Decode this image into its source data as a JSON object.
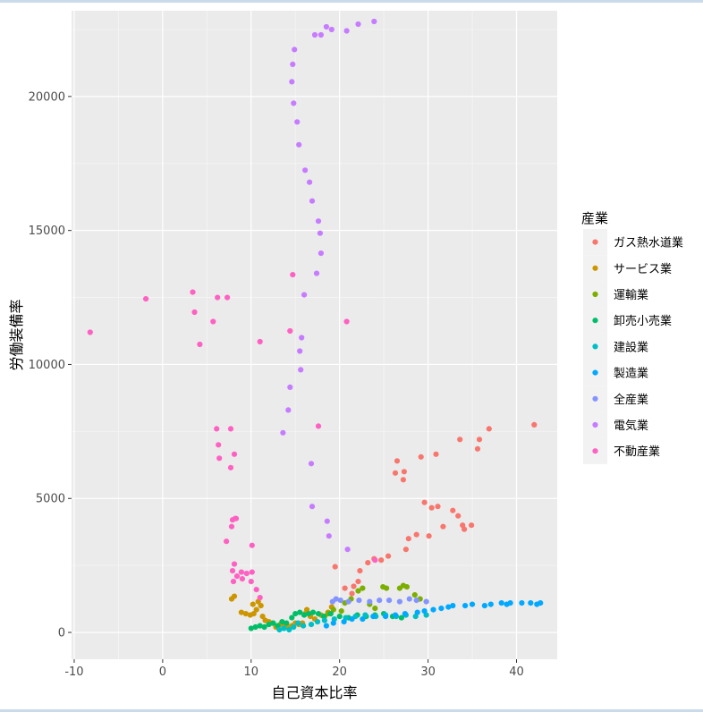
{
  "chart_data": {
    "type": "scatter",
    "title": "",
    "xlabel": "自己資本比率",
    "ylabel": "労働装備率",
    "xlim": [
      -10.3,
      44.6
    ],
    "ylim": [
      -1000,
      23200
    ],
    "x_ticks": [
      -10,
      0,
      10,
      20,
      30,
      40
    ],
    "y_ticks": [
      0,
      5000,
      10000,
      15000,
      20000
    ],
    "grid": true,
    "legend_title": "産業",
    "legend_position": "right",
    "series": [
      {
        "name": "ガス熱水道業",
        "color": "#F8766D",
        "points": [
          [
            19.5,
            2450
          ],
          [
            20.6,
            1650
          ],
          [
            21.4,
            1450
          ],
          [
            21.6,
            1720
          ],
          [
            22.1,
            1900
          ],
          [
            22.3,
            2300
          ],
          [
            23.2,
            2600
          ],
          [
            23.9,
            2750
          ],
          [
            24.7,
            2700
          ],
          [
            25.5,
            2850
          ],
          [
            26.3,
            5950
          ],
          [
            26.5,
            6400
          ],
          [
            27.2,
            5700
          ],
          [
            27.3,
            6000
          ],
          [
            27.5,
            3100
          ],
          [
            27.8,
            3500
          ],
          [
            28.7,
            3650
          ],
          [
            29.2,
            6550
          ],
          [
            29.6,
            4850
          ],
          [
            30.1,
            3600
          ],
          [
            30.4,
            4650
          ],
          [
            30.9,
            6650
          ],
          [
            31.1,
            4700
          ],
          [
            31.7,
            3950
          ],
          [
            32.8,
            4550
          ],
          [
            33.4,
            4350
          ],
          [
            33.6,
            7200
          ],
          [
            33.9,
            4000
          ],
          [
            34.1,
            3850
          ],
          [
            34.9,
            4000
          ],
          [
            35.6,
            6850
          ],
          [
            35.8,
            7200
          ],
          [
            36.9,
            7600
          ],
          [
            42.0,
            7750
          ]
        ]
      },
      {
        "name": "サービス業",
        "color": "#CD9600",
        "points": [
          [
            7.8,
            1250
          ],
          [
            8.1,
            1350
          ],
          [
            8.9,
            750
          ],
          [
            9.4,
            700
          ],
          [
            9.9,
            650
          ],
          [
            10.2,
            1050
          ],
          [
            10.3,
            700
          ],
          [
            10.6,
            850
          ],
          [
            10.8,
            1150
          ],
          [
            11.1,
            1000
          ],
          [
            11.3,
            600
          ],
          [
            11.6,
            450
          ],
          [
            12.0,
            400
          ],
          [
            12.4,
            350
          ],
          [
            12.8,
            200
          ],
          [
            13.3,
            300
          ],
          [
            13.8,
            300
          ],
          [
            14.2,
            200
          ],
          [
            14.6,
            250
          ],
          [
            15.0,
            350
          ],
          [
            15.4,
            300
          ],
          [
            15.8,
            350
          ],
          [
            16.1,
            700
          ],
          [
            16.3,
            850
          ],
          [
            16.7,
            600
          ],
          [
            17.2,
            500
          ],
          [
            17.9,
            650
          ],
          [
            18.7,
            750
          ],
          [
            19.1,
            950
          ]
        ]
      },
      {
        "name": "運輸業",
        "color": "#7CAE00",
        "points": [
          [
            18.3,
            600
          ],
          [
            18.7,
            700
          ],
          [
            19.3,
            850
          ],
          [
            20.2,
            800
          ],
          [
            20.6,
            1100
          ],
          [
            21.3,
            1250
          ],
          [
            22.1,
            1550
          ],
          [
            22.6,
            1650
          ],
          [
            23.4,
            1050
          ],
          [
            24.0,
            900
          ],
          [
            24.9,
            1700
          ],
          [
            25.3,
            1650
          ],
          [
            26.8,
            1650
          ],
          [
            27.2,
            1750
          ],
          [
            27.6,
            1700
          ],
          [
            28.5,
            1400
          ],
          [
            29.1,
            1250
          ]
        ]
      },
      {
        "name": "卸売小売業",
        "color": "#00BE67",
        "points": [
          [
            10.0,
            150
          ],
          [
            10.5,
            200
          ],
          [
            11.0,
            250
          ],
          [
            11.5,
            200
          ],
          [
            12.0,
            300
          ],
          [
            12.5,
            350
          ],
          [
            13.0,
            250
          ],
          [
            13.5,
            400
          ],
          [
            14.0,
            350
          ],
          [
            14.6,
            550
          ],
          [
            15.0,
            700
          ],
          [
            15.5,
            750
          ],
          [
            16.0,
            650
          ],
          [
            16.5,
            700
          ],
          [
            17.0,
            750
          ],
          [
            17.6,
            700
          ],
          [
            18.2,
            600
          ],
          [
            19.0,
            700
          ],
          [
            20.0,
            600
          ],
          [
            21.0,
            550
          ],
          [
            22.0,
            650
          ],
          [
            23.0,
            600
          ],
          [
            24.0,
            650
          ],
          [
            25.0,
            700
          ],
          [
            26.0,
            600
          ],
          [
            27.0,
            550
          ]
        ]
      },
      {
        "name": "建設業",
        "color": "#00BFC4",
        "points": [
          [
            13.2,
            100
          ],
          [
            13.7,
            150
          ],
          [
            14.3,
            100
          ],
          [
            14.8,
            200
          ],
          [
            15.3,
            350
          ],
          [
            15.9,
            250
          ],
          [
            16.8,
            300
          ],
          [
            17.5,
            400
          ],
          [
            18.3,
            450
          ],
          [
            19.4,
            500
          ],
          [
            20.7,
            550
          ],
          [
            21.8,
            600
          ],
          [
            22.9,
            650
          ],
          [
            24.1,
            600
          ],
          [
            25.2,
            650
          ],
          [
            26.4,
            600
          ],
          [
            27.5,
            650
          ],
          [
            28.6,
            600
          ],
          [
            29.8,
            650
          ]
        ]
      },
      {
        "name": "製造業",
        "color": "#00A9FF",
        "points": [
          [
            18.5,
            250
          ],
          [
            19.3,
            350
          ],
          [
            20.5,
            400
          ],
          [
            21.4,
            500
          ],
          [
            22.6,
            500
          ],
          [
            23.8,
            600
          ],
          [
            25.2,
            600
          ],
          [
            26.3,
            650
          ],
          [
            27.4,
            700
          ],
          [
            28.8,
            750
          ],
          [
            29.6,
            800
          ],
          [
            30.6,
            850
          ],
          [
            31.5,
            900
          ],
          [
            32.3,
            950
          ],
          [
            32.8,
            1000
          ],
          [
            34.2,
            1000
          ],
          [
            35.0,
            1050
          ],
          [
            36.4,
            1000
          ],
          [
            37.1,
            1050
          ],
          [
            38.3,
            1100
          ],
          [
            38.9,
            1050
          ],
          [
            39.3,
            1100
          ],
          [
            40.6,
            1100
          ],
          [
            41.6,
            1100
          ],
          [
            42.3,
            1050
          ],
          [
            42.7,
            1100
          ]
        ]
      },
      {
        "name": "全産業",
        "color": "#8494FF",
        "points": [
          [
            19.2,
            1150
          ],
          [
            19.6,
            1250
          ],
          [
            20.1,
            1200
          ],
          [
            21.0,
            1150
          ],
          [
            22.2,
            1200
          ],
          [
            23.4,
            1150
          ],
          [
            24.5,
            1200
          ],
          [
            25.6,
            1200
          ],
          [
            26.8,
            1150
          ],
          [
            27.9,
            1250
          ],
          [
            28.7,
            1200
          ],
          [
            29.8,
            1150
          ]
        ]
      },
      {
        "name": "電気業",
        "color": "#E68613",
        "points": []
      },
      {
        "name": "電気業",
        "color": "#E68613",
        "points": []
      }
    ]
  }
}
